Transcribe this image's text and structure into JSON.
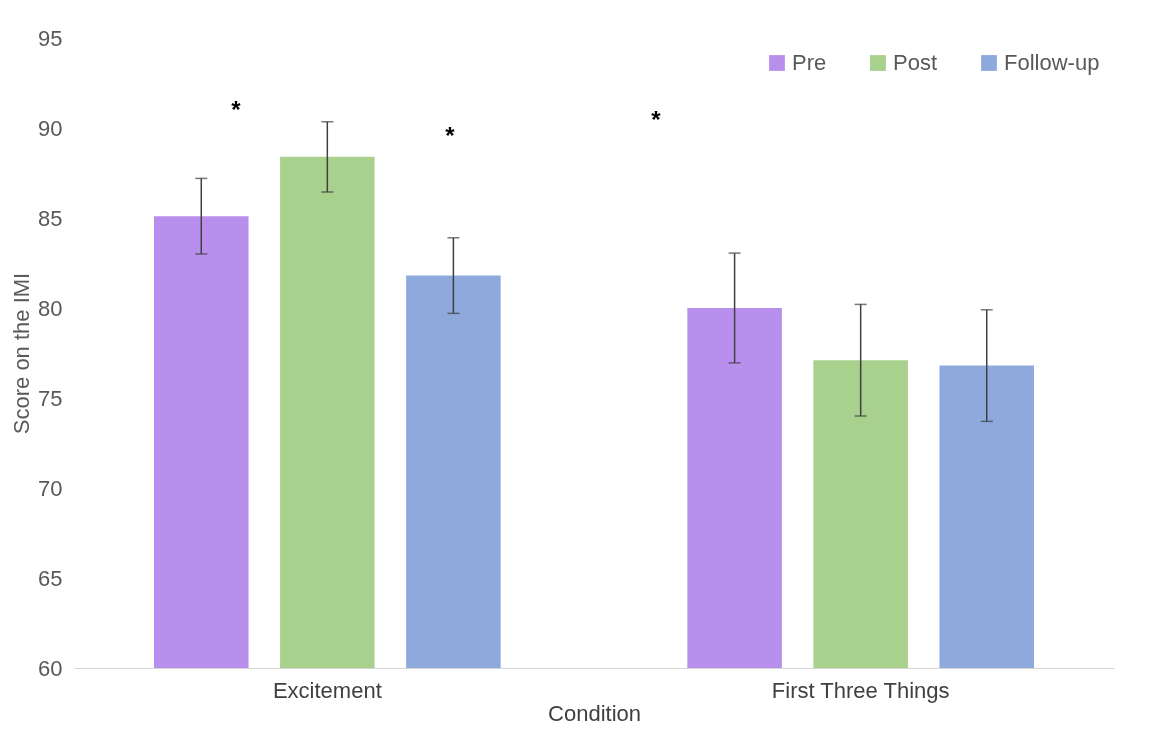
{
  "chart_data": {
    "type": "bar",
    "xlabel": "Condition",
    "ylabel": "Score on the IMI",
    "categories": [
      "Excitement",
      "First Three Things"
    ],
    "series": [
      {
        "name": "Pre",
        "color": "#b88fec",
        "values": [
          85.1,
          80.0
        ],
        "errors": [
          2.1,
          3.05
        ]
      },
      {
        "name": "Post",
        "color": "#a9d18e",
        "values": [
          88.4,
          77.1
        ],
        "errors": [
          1.95,
          3.1
        ]
      },
      {
        "name": "Follow-up",
        "color": "#8eaadc",
        "values": [
          81.8,
          76.8
        ],
        "errors": [
          2.1,
          3.1
        ]
      }
    ],
    "ylim": [
      60,
      95
    ],
    "yticks": [
      60,
      65,
      70,
      75,
      80,
      85,
      90,
      95
    ],
    "grid": false,
    "legend": "top right",
    "annotations": [
      "*",
      "*",
      "*"
    ]
  }
}
